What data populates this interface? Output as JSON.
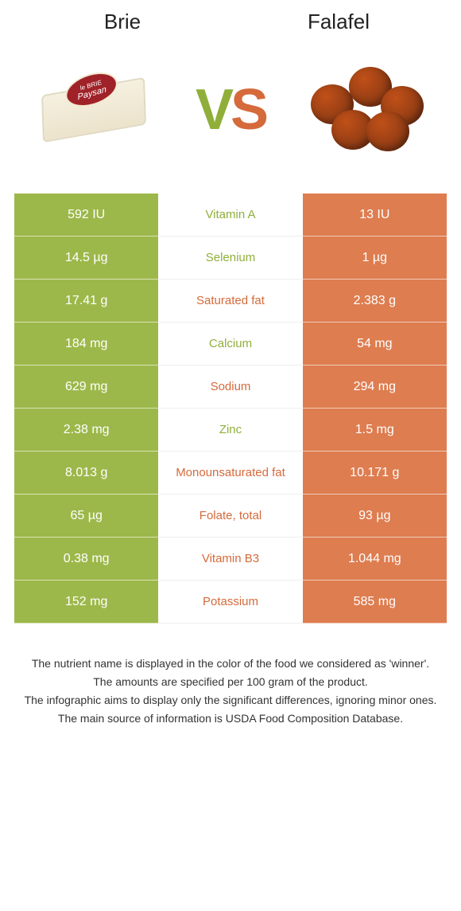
{
  "colors": {
    "left": "#9db84a",
    "right": "#de7d50",
    "left_text": "#8faf3a",
    "right_text": "#d56a3b"
  },
  "foods": {
    "left": {
      "title": "Brie",
      "label_top": "le BRIE",
      "label_bottom": "Paysan"
    },
    "right": {
      "title": "Falafel"
    }
  },
  "vs": {
    "v": "V",
    "s": "S"
  },
  "rows": [
    {
      "left": "592 IU",
      "mid": "Vitamin A",
      "right": "13 IU",
      "winner": "left"
    },
    {
      "left": "14.5 µg",
      "mid": "Selenium",
      "right": "1 µg",
      "winner": "left"
    },
    {
      "left": "17.41 g",
      "mid": "Saturated fat",
      "right": "2.383 g",
      "winner": "right"
    },
    {
      "left": "184 mg",
      "mid": "Calcium",
      "right": "54 mg",
      "winner": "left"
    },
    {
      "left": "629 mg",
      "mid": "Sodium",
      "right": "294 mg",
      "winner": "right"
    },
    {
      "left": "2.38 mg",
      "mid": "Zinc",
      "right": "1.5 mg",
      "winner": "left"
    },
    {
      "left": "8.013 g",
      "mid": "Monounsaturated fat",
      "right": "10.171 g",
      "winner": "right"
    },
    {
      "left": "65 µg",
      "mid": "Folate, total",
      "right": "93 µg",
      "winner": "right"
    },
    {
      "left": "0.38 mg",
      "mid": "Vitamin B3",
      "right": "1.044 mg",
      "winner": "right"
    },
    {
      "left": "152 mg",
      "mid": "Potassium",
      "right": "585 mg",
      "winner": "right"
    }
  ],
  "footnotes": [
    "The nutrient name is displayed in the color of the food we considered as 'winner'.",
    "The amounts are specified per 100 gram of the product.",
    "The infographic aims to display only the significant differences, ignoring minor ones.",
    "The main source of information is USDA Food Composition Database."
  ]
}
